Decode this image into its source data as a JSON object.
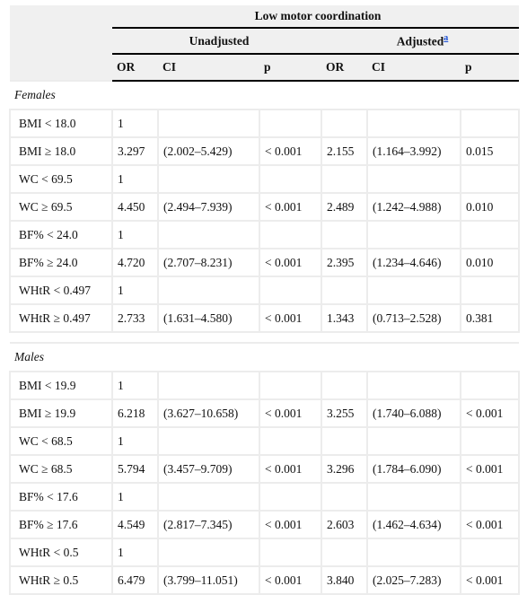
{
  "header": {
    "title": "Low motor coordination",
    "groups": [
      "Unadjusted",
      "Adjusted"
    ],
    "footnote_mark": "a",
    "columns": [
      "OR",
      "CI",
      "p",
      "OR",
      "CI",
      "p"
    ]
  },
  "sections": [
    {
      "label": "Females",
      "rows": [
        [
          "BMI < 18.0",
          "1"
        ],
        [
          "BMI ≥ 18.0",
          "3.297",
          "(2.002–5.429)",
          "< 0.001",
          "2.155",
          "(1.164–3.992)",
          "0.015"
        ],
        [
          "WC < 69.5",
          "1"
        ],
        [
          "WC ≥ 69.5",
          "4.450",
          "(2.494–7.939)",
          "< 0.001",
          "2.489",
          "(1.242–4.988)",
          "0.010"
        ],
        [
          "BF% < 24.0",
          "1"
        ],
        [
          "BF% ≥ 24.0",
          "4.720",
          "(2.707–8.231)",
          "< 0.001",
          "2.395",
          "(1.234–4.646)",
          "0.010"
        ],
        [
          "WHtR < 0.497",
          "1"
        ],
        [
          "WHtR ≥ 0.497",
          "2.733",
          "(1.631–4.580)",
          "< 0.001",
          "1.343",
          "(0.713–2.528)",
          "0.381"
        ]
      ]
    },
    {
      "label": "Males",
      "rows": [
        [
          "BMI < 19.9",
          "1"
        ],
        [
          "BMI ≥ 19.9",
          "6.218",
          "(3.627–10.658)",
          "< 0.001",
          "3.255",
          "(1.740–6.088)",
          "< 0.001"
        ],
        [
          "WC < 68.5",
          "1"
        ],
        [
          "WC ≥ 68.5",
          "5.794",
          "(3.457–9.709)",
          "< 0.001",
          "3.296",
          "(1.784–6.090)",
          "< 0.001"
        ],
        [
          "BF% < 17.6",
          "1"
        ],
        [
          "BF% ≥ 17.6",
          "4.549",
          "(2.817–7.345)",
          "< 0.001",
          "2.603",
          "(1.462–4.634)",
          "< 0.001"
        ],
        [
          "WHtR < 0.5",
          "1"
        ],
        [
          "WHtR ≥ 0.5",
          "6.479",
          "(3.799–11.051)",
          "< 0.001",
          "3.840",
          "(2.025–7.283)",
          "< 0.001"
        ]
      ]
    }
  ]
}
